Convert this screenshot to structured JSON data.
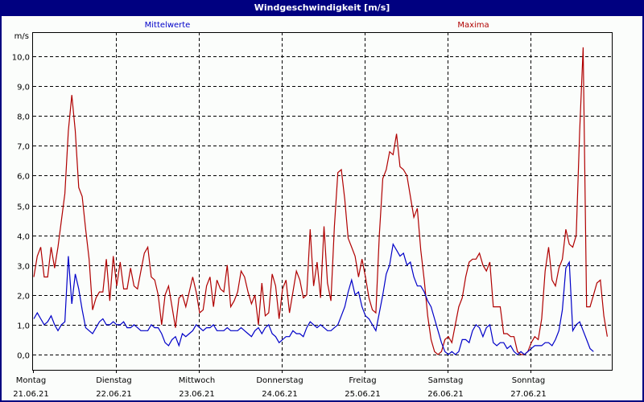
{
  "window": {
    "title": "Windgeschwindigkeit [m/s]"
  },
  "legend": {
    "mean_label": "Mittelwerte",
    "max_label": "Maxima",
    "mean_color": "#0000c8",
    "max_color": "#b00000"
  },
  "axes": {
    "y_unit": "m/s",
    "y_ticks": [
      "10,0",
      "9,0",
      "8,0",
      "7,0",
      "6,0",
      "5,0",
      "4,0",
      "3,0",
      "2,0",
      "1,0",
      "0,0"
    ],
    "x_ticks": [
      {
        "day": "Montag",
        "date": "21.06.21"
      },
      {
        "day": "Dienstag",
        "date": "22.06.21"
      },
      {
        "day": "Mittwoch",
        "date": "23.06.21"
      },
      {
        "day": "Donnerstag",
        "date": "24.06.21"
      },
      {
        "day": "Freitag",
        "date": "25.06.21"
      },
      {
        "day": "Samstag",
        "date": "26.06.21"
      },
      {
        "day": "Sonntag",
        "date": "27.06.21"
      }
    ]
  },
  "chart_data": {
    "type": "line",
    "title": "Windgeschwindigkeit [m/s]",
    "xlabel": "",
    "ylabel": "m/s",
    "ylim": [
      -0.5,
      11.0
    ],
    "grid": true,
    "legend_position": "top",
    "x_categories": [
      "Montag 21.06.21",
      "Dienstag 22.06.21",
      "Mittwoch 23.06.21",
      "Donnerstag 24.06.21",
      "Freitag 25.06.21",
      "Samstag 26.06.21",
      "Sonntag 27.06.21"
    ],
    "x_unit": "hours since 21.06.21 00:00 (step 1 h)",
    "series": [
      {
        "name": "Mittelwerte",
        "color": "#0000c8",
        "values": [
          1.2,
          1.4,
          1.2,
          1.0,
          1.1,
          1.3,
          1.0,
          0.8,
          1.0,
          1.1,
          3.3,
          1.7,
          2.7,
          2.2,
          1.5,
          0.9,
          0.8,
          0.7,
          0.9,
          1.1,
          1.2,
          1.0,
          1.0,
          1.1,
          1.0,
          1.0,
          1.1,
          0.9,
          0.9,
          1.0,
          0.9,
          0.8,
          0.8,
          0.8,
          1.0,
          0.9,
          0.9,
          0.7,
          0.4,
          0.3,
          0.5,
          0.6,
          0.3,
          0.7,
          0.6,
          0.7,
          0.8,
          1.0,
          0.9,
          0.8,
          0.9,
          0.9,
          1.0,
          0.8,
          0.8,
          0.8,
          0.9,
          0.8,
          0.8,
          0.8,
          0.9,
          0.8,
          0.7,
          0.6,
          0.8,
          0.9,
          0.7,
          0.9,
          1.0,
          0.7,
          0.6,
          0.4,
          0.5,
          0.6,
          0.6,
          0.8,
          0.7,
          0.7,
          0.6,
          0.9,
          1.1,
          1.0,
          0.9,
          1.0,
          0.9,
          0.8,
          0.8,
          0.9,
          1.0,
          1.3,
          1.6,
          2.1,
          2.5,
          2.0,
          2.1,
          1.6,
          1.3,
          1.2,
          1.0,
          0.8,
          1.4,
          2.0,
          2.7,
          3.0,
          3.7,
          3.5,
          3.3,
          3.4,
          3.0,
          3.1,
          2.6,
          2.3,
          2.3,
          2.1,
          1.8,
          1.6,
          1.2,
          0.8,
          0.4,
          0.1,
          0.0,
          0.1,
          0.0,
          0.1,
          0.5,
          0.5,
          0.4,
          0.8,
          1.0,
          0.9,
          0.6,
          0.9,
          1.0,
          0.4,
          0.3,
          0.4,
          0.4,
          0.2,
          0.3,
          0.1,
          0.0,
          0.1,
          0.0,
          0.1,
          0.2,
          0.3,
          0.3,
          0.3,
          0.4,
          0.4,
          0.3,
          0.5,
          0.8,
          1.5,
          2.9,
          3.1,
          0.8,
          1.0,
          1.1,
          0.8,
          0.5,
          0.2,
          0.1
        ]
      },
      {
        "name": "Maxima",
        "color": "#b00000",
        "values": [
          2.6,
          3.3,
          3.6,
          2.6,
          2.6,
          3.6,
          2.9,
          3.6,
          4.5,
          5.4,
          7.5,
          8.7,
          7.5,
          5.6,
          5.3,
          4.2,
          3.2,
          1.5,
          1.9,
          2.1,
          2.1,
          3.2,
          1.8,
          3.3,
          2.3,
          3.1,
          2.2,
          2.2,
          2.9,
          2.3,
          2.2,
          2.8,
          3.4,
          3.6,
          2.6,
          2.5,
          2.0,
          1.0,
          2.0,
          2.3,
          1.6,
          0.9,
          1.9,
          2.0,
          1.6,
          2.1,
          2.6,
          2.1,
          1.4,
          1.5,
          2.3,
          2.6,
          1.6,
          2.5,
          2.2,
          2.1,
          3.0,
          1.6,
          1.8,
          2.1,
          2.8,
          2.6,
          2.1,
          1.7,
          2.0,
          1.0,
          2.4,
          1.3,
          1.4,
          2.7,
          2.3,
          1.2,
          2.2,
          2.5,
          1.4,
          2.1,
          2.8,
          2.5,
          1.9,
          2.0,
          4.2,
          2.3,
          3.1,
          1.9,
          4.3,
          2.4,
          1.8,
          4.3,
          6.1,
          6.2,
          5.2,
          3.9,
          3.6,
          3.3,
          2.6,
          3.2,
          2.6,
          1.9,
          1.5,
          1.4,
          4.0,
          5.9,
          6.2,
          6.8,
          6.7,
          7.4,
          6.3,
          6.2,
          6.0,
          5.3,
          4.6,
          4.9,
          3.5,
          2.5,
          1.3,
          0.5,
          0.1,
          0.0,
          0.1,
          0.5,
          0.6,
          0.4,
          1.0,
          1.6,
          1.9,
          2.6,
          3.1,
          3.2,
          3.2,
          3.4,
          3.0,
          2.8,
          3.1,
          1.6,
          1.6,
          1.6,
          0.7,
          0.7,
          0.6,
          0.6,
          0.1,
          0.0,
          0.0,
          0.1,
          0.4,
          0.6,
          0.5,
          1.2,
          2.8,
          3.6,
          2.5,
          2.3,
          2.9,
          3.2,
          4.2,
          3.7,
          3.6,
          4.0,
          7.5,
          10.3,
          1.6,
          1.6,
          2.0,
          2.4,
          2.5,
          1.3,
          0.6
        ]
      }
    ]
  }
}
